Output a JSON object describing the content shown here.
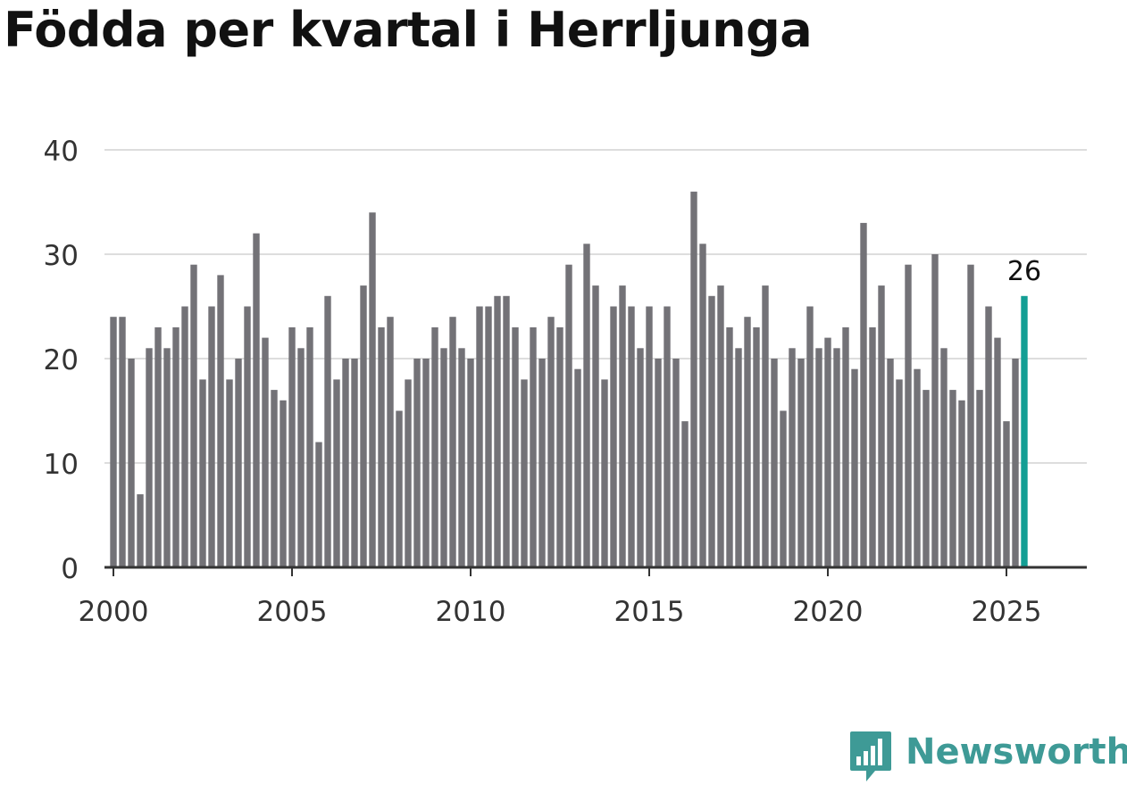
{
  "title": "Födda per kvartal i Herrljunga",
  "brand": {
    "name": "Newsworthy",
    "color": "#3e9a96",
    "icon": "newsworthy-logo-icon"
  },
  "colors": {
    "bar": "#737277",
    "highlight": "#139e94",
    "grid": "#dddddd",
    "axis": "#333333",
    "text": "#333333"
  },
  "chart_data": {
    "type": "bar",
    "title": "Födda per kvartal i Herrljunga",
    "xlabel": "",
    "ylabel": "",
    "ylim": [
      0,
      40
    ],
    "yticks": [
      0,
      10,
      20,
      30,
      40
    ],
    "xticks": [
      2000,
      2005,
      2010,
      2015,
      2020,
      2025
    ],
    "xrange": [
      1999.75,
      2027.25
    ],
    "grid": true,
    "start": 2000.0,
    "step": 0.25,
    "values": [
      24,
      24,
      20,
      7,
      21,
      23,
      21,
      23,
      25,
      29,
      18,
      25,
      28,
      18,
      20,
      25,
      32,
      22,
      17,
      16,
      23,
      21,
      23,
      12,
      26,
      18,
      20,
      20,
      27,
      34,
      23,
      24,
      15,
      18,
      20,
      20,
      23,
      21,
      24,
      21,
      20,
      25,
      25,
      26,
      26,
      23,
      18,
      23,
      20,
      24,
      23,
      29,
      19,
      31,
      27,
      18,
      25,
      27,
      25,
      21,
      25,
      20,
      25,
      20,
      14,
      36,
      31,
      26,
      27,
      23,
      21,
      24,
      23,
      27,
      20,
      15,
      21,
      20,
      25,
      21,
      22,
      21,
      23,
      19,
      33,
      23,
      27,
      20,
      18,
      29,
      19,
      17,
      30,
      21,
      17,
      16,
      29,
      17,
      25,
      22,
      14,
      20,
      26
    ],
    "highlight_last": true,
    "annotation": {
      "label": "26",
      "index": 102
    }
  }
}
